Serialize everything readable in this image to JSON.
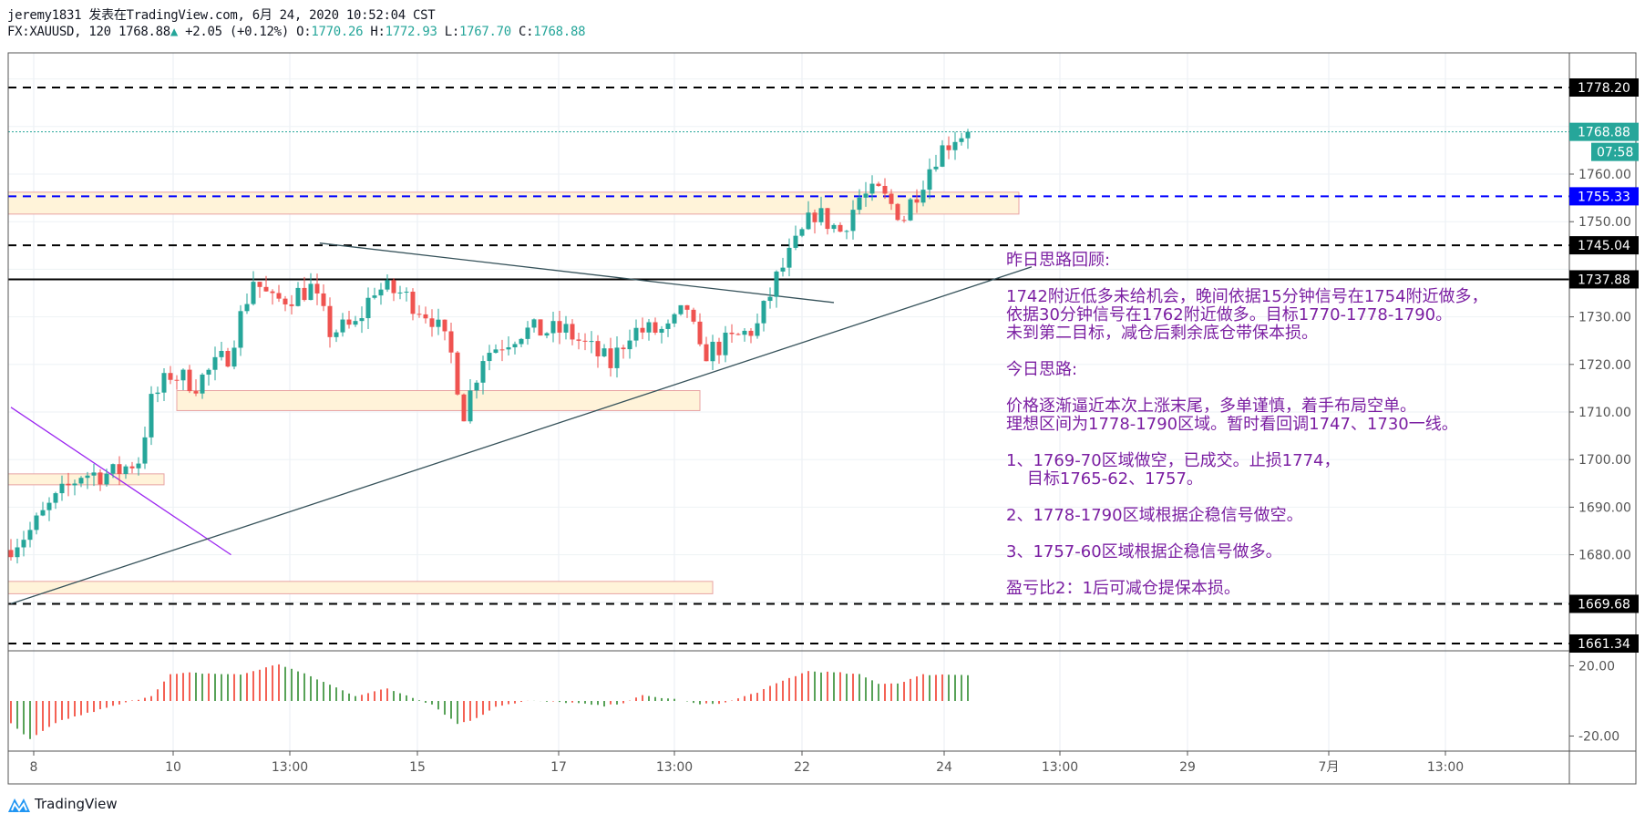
{
  "header": {
    "line1": "jeremy1831 发表在TradingView.com, 6月 24, 2020 10:52:04 CST",
    "symbol": "FX:XAUUSD, 120",
    "last": "1768.88",
    "change": "+2.05 (+0.12%)",
    "o_label": "O:",
    "o": "1770.26",
    "h_label": "H:",
    "h": "1772.93",
    "l_label": "L:",
    "l": "1767.70",
    "c_label": "C:",
    "c": "1768.88"
  },
  "colors": {
    "up": "#26a69a",
    "down": "#ef5350",
    "note": "#7b1fa2",
    "blue_line": "#0000ff",
    "zone_fill": "#fff3d9",
    "zone_border": "#e8a3a3",
    "hist_up": "#f23a2a",
    "hist_down": "#2e8b2e"
  },
  "price_axis": {
    "ticks": [
      "1760.00",
      "1750.00",
      "1730.00",
      "1720.00",
      "1710.00",
      "1700.00",
      "1690.00",
      "1680.00"
    ],
    "tick_values": [
      1760,
      1750,
      1730,
      1720,
      1710,
      1700,
      1690,
      1680
    ],
    "labels": [
      {
        "text": "1778.20",
        "value": 1778.2,
        "kind": "black"
      },
      {
        "text": "1768.88",
        "value": 1768.88,
        "kind": "teal"
      },
      {
        "text": "1755.33",
        "value": 1755.33,
        "kind": "blue"
      },
      {
        "text": "1745.04",
        "value": 1745.04,
        "kind": "black"
      },
      {
        "text": "1737.88",
        "value": 1737.88,
        "kind": "black"
      },
      {
        "text": "1669.68",
        "value": 1669.68,
        "kind": "black"
      },
      {
        "text": "1661.34",
        "value": 1661.34,
        "kind": "black"
      }
    ],
    "countdown": "07:58"
  },
  "indicator_axis": {
    "ticks": [
      "20.00",
      "-20.00"
    ],
    "tick_values": [
      20,
      -20
    ]
  },
  "time_axis": {
    "labels": [
      "8",
      "10",
      "13:00",
      "15",
      "17",
      "13:00",
      "22",
      "24",
      "13:00",
      "29",
      "7月",
      "13:00"
    ]
  },
  "chart_data": {
    "type": "candlestick",
    "symbol": "FX:XAUUSD",
    "interval": "120",
    "ylim": [
      1661.34,
      1778.2
    ],
    "horizontal_lines": [
      {
        "price": 1778.2,
        "style": "dashed",
        "color": "#000000"
      },
      {
        "price": 1768.88,
        "style": "dotted",
        "color": "#26a69a"
      },
      {
        "price": 1755.33,
        "style": "dashed",
        "color": "#0000ff"
      },
      {
        "price": 1745.04,
        "style": "dashed",
        "color": "#000000"
      },
      {
        "price": 1737.88,
        "style": "solid",
        "color": "#000000"
      },
      {
        "price": 1669.68,
        "style": "dashed",
        "color": "#000000"
      },
      {
        "price": 1661.34,
        "style": "dashed",
        "color": "#000000"
      }
    ],
    "zones": [
      {
        "from_bar": 0,
        "to_bar": 158,
        "top": 1756.2,
        "bottom": 1751.6
      },
      {
        "from_bar": 26,
        "to_bar": 108,
        "top": 1714.5,
        "bottom": 1710.3
      },
      {
        "from_bar": 0,
        "to_bar": 24,
        "top": 1697.0,
        "bottom": 1694.7
      },
      {
        "from_bar": 0,
        "to_bar": 110,
        "top": 1674.4,
        "bottom": 1671.8
      }
    ],
    "trendlines": [
      {
        "from": [
          0,
          1711
        ],
        "to": [
          34.5,
          1680
        ],
        "color": "#9c27f0"
      },
      {
        "from": [
          0,
          1669.7
        ],
        "to": [
          160,
          1740.5
        ],
        "color": "#36525a"
      },
      {
        "from": [
          48.4,
          1745.5
        ],
        "to": [
          129,
          1733
        ],
        "color": "#36525a"
      }
    ],
    "close_path": [
      [
        0,
        1682
      ],
      [
        3,
        1685
      ],
      [
        6,
        1690
      ],
      [
        11,
        1697
      ],
      [
        16,
        1697
      ],
      [
        20,
        1700
      ],
      [
        22,
        1712
      ],
      [
        25,
        1718
      ],
      [
        29,
        1716
      ],
      [
        34,
        1722
      ],
      [
        38,
        1738
      ],
      [
        41,
        1733
      ],
      [
        47,
        1736
      ],
      [
        50,
        1727
      ],
      [
        54,
        1728
      ],
      [
        57,
        1736
      ],
      [
        61,
        1735
      ],
      [
        66,
        1730
      ],
      [
        69,
        1722
      ],
      [
        71,
        1710
      ],
      [
        74,
        1722
      ],
      [
        80,
        1727
      ],
      [
        87,
        1727
      ],
      [
        94,
        1720
      ],
      [
        97,
        1727
      ],
      [
        103,
        1727
      ],
      [
        106,
        1732
      ],
      [
        108,
        1722
      ],
      [
        113,
        1725
      ],
      [
        117,
        1728
      ],
      [
        120,
        1738
      ],
      [
        123,
        1745
      ],
      [
        126,
        1752
      ],
      [
        130,
        1748
      ],
      [
        133,
        1755
      ],
      [
        136,
        1756
      ],
      [
        140,
        1751
      ],
      [
        141,
        1754
      ],
      [
        145,
        1764
      ],
      [
        148,
        1768
      ],
      [
        150,
        1768.88
      ]
    ],
    "histogram_path": [
      [
        0,
        -13
      ],
      [
        3,
        -22
      ],
      [
        6,
        -15
      ],
      [
        8,
        -11
      ],
      [
        14,
        -5
      ],
      [
        19,
        0
      ],
      [
        22,
        3
      ],
      [
        25,
        15
      ],
      [
        28,
        16
      ],
      [
        36,
        15
      ],
      [
        42,
        21
      ],
      [
        47,
        14
      ],
      [
        52,
        6
      ],
      [
        54,
        3
      ],
      [
        59,
        7
      ],
      [
        63,
        2
      ],
      [
        66,
        -2
      ],
      [
        70,
        -13
      ],
      [
        73,
        -10
      ],
      [
        76,
        -3
      ],
      [
        81,
        0
      ],
      [
        88,
        -1
      ],
      [
        93,
        -3
      ],
      [
        96,
        -1
      ],
      [
        99,
        3
      ],
      [
        104,
        1
      ],
      [
        108,
        -2
      ],
      [
        112,
        -1
      ],
      [
        117,
        5
      ],
      [
        122,
        13
      ],
      [
        125,
        17
      ],
      [
        130,
        16
      ],
      [
        133,
        15
      ],
      [
        136,
        10
      ],
      [
        139,
        10
      ],
      [
        143,
        15
      ],
      [
        150,
        15
      ]
    ]
  },
  "notes": [
    "昨日思路回顾:",
    "1742附近低多未给机会，晚间依据15分钟信号在1754附近做多，",
    "依据30分钟信号在1762附近做多。目标1770-1778-1790。",
    "未到第二目标，减仓后剩余底仓带保本损。",
    "今日思路:",
    "价格逐渐逼近本次上涨末尾，多单谨慎，着手布局空单。",
    "理想区间为1778-1790区域。暂时看回调1747、1730一线。",
    "1、1769-70区域做空，已成交。止损1774，",
    "    目标1765-62、1757。",
    "2、1778-1790区域根据企稳信号做空。",
    "3、1757-60区域根据企稳信号做多。",
    "盈亏比2：1后可减仓提保本损。"
  ],
  "footer": {
    "brand": "TradingView"
  }
}
